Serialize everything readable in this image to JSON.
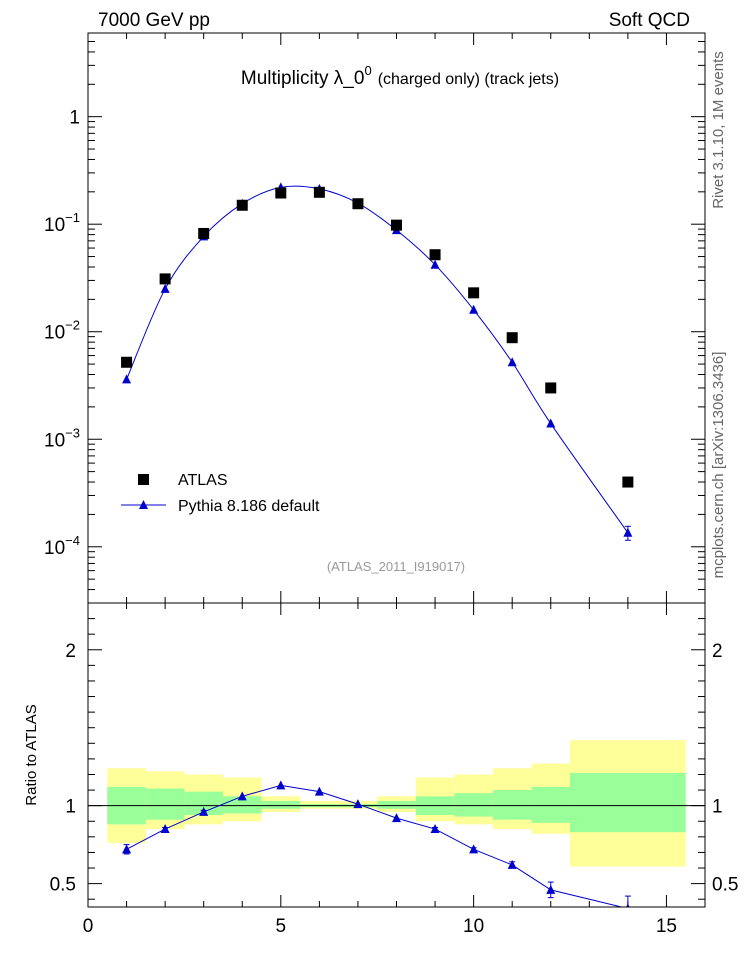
{
  "header": {
    "left": "7000 GeV pp",
    "right": "Soft QCD"
  },
  "side_labels": {
    "rivet": "Rivet 3.1.10,  1M events",
    "mcplots": "mcplots.cern.ch [arXiv:1306.3436]"
  },
  "chart_data": [
    {
      "type": "scatter",
      "title_main": "Multiplicity  λ_0",
      "title_sup": "0",
      "title_suffix": "(charged only) (track jets)",
      "analysis_id": "(ATLAS_2011_I919017)",
      "yscale": "log",
      "ylim": [
        3e-05,
        6
      ],
      "xlim": [
        0,
        16
      ],
      "ytick_labels": [
        {
          "v": 1,
          "base": "1",
          "exp": ""
        },
        {
          "v": 0.1,
          "base": "10",
          "exp": "−1"
        },
        {
          "v": 0.01,
          "base": "10",
          "exp": "−2"
        },
        {
          "v": 0.001,
          "base": "10",
          "exp": "−3"
        },
        {
          "v": 0.0001,
          "base": "10",
          "exp": "−4"
        }
      ],
      "legend": [
        {
          "name": "ATLAS",
          "color": "#000000",
          "marker": "square"
        },
        {
          "name": "Pythia 8.186 default",
          "color": "#0000cc",
          "marker": "triangle"
        }
      ],
      "series": [
        {
          "name": "ATLAS",
          "x": [
            1,
            2,
            3,
            4,
            5,
            6,
            7,
            8,
            9,
            10,
            11,
            12,
            14
          ],
          "y": [
            0.0052,
            0.031,
            0.082,
            0.15,
            0.195,
            0.198,
            0.155,
            0.098,
            0.052,
            0.023,
            0.0088,
            0.003,
            0.0004
          ]
        },
        {
          "name": "Pythia 8.186 default",
          "x": [
            1,
            2,
            3,
            4,
            5,
            6,
            7,
            8,
            9,
            10,
            11,
            12,
            14
          ],
          "y": [
            0.0036,
            0.025,
            0.077,
            0.155,
            0.22,
            0.213,
            0.157,
            0.088,
            0.042,
            0.016,
            0.0052,
            0.0014,
            0.000135
          ],
          "yerr": [
            0,
            0,
            0,
            0,
            0,
            0,
            0,
            0,
            0,
            0,
            0,
            0,
            2e-05
          ]
        }
      ]
    },
    {
      "type": "scatter",
      "ylabel": "Ratio to ATLAS",
      "xlim": [
        0,
        16
      ],
      "ylim": [
        0.35,
        2.3
      ],
      "ytick_labels": [
        "0.5",
        "1",
        "2"
      ],
      "xtick_labels": [
        "0",
        "5",
        "10",
        "15"
      ],
      "bands": {
        "x_edges": [
          0.5,
          1.5,
          2.5,
          3.5,
          4.5,
          5.5,
          6.5,
          7.5,
          8.5,
          9.5,
          10.5,
          11.5,
          12.5,
          15.5
        ],
        "yellow_lo": [
          0.76,
          0.85,
          0.88,
          0.9,
          0.96,
          0.98,
          0.98,
          0.96,
          0.9,
          0.88,
          0.85,
          0.82,
          0.61
        ],
        "yellow_hi": [
          1.24,
          1.22,
          1.2,
          1.18,
          1.06,
          1.03,
          1.03,
          1.06,
          1.18,
          1.2,
          1.24,
          1.27,
          1.42
        ],
        "green_lo": [
          0.88,
          0.91,
          0.94,
          0.95,
          0.98,
          0.99,
          0.99,
          0.98,
          0.94,
          0.93,
          0.91,
          0.89,
          0.83
        ],
        "green_hi": [
          1.12,
          1.11,
          1.09,
          1.06,
          1.03,
          1.01,
          1.01,
          1.03,
          1.06,
          1.08,
          1.1,
          1.12,
          1.21
        ],
        "yellow_color": "#ffff99",
        "green_color": "#99ff99"
      },
      "series": [
        {
          "name": "Pythia 8.186 default",
          "x": [
            1,
            2,
            3,
            4,
            5,
            6,
            7,
            8,
            9,
            10,
            11,
            12,
            14
          ],
          "y": [
            0.72,
            0.85,
            0.96,
            1.06,
            1.13,
            1.09,
            1.01,
            0.92,
            0.85,
            0.72,
            0.62,
            0.46,
            0.34
          ],
          "yerr": [
            0.03,
            0.01,
            0.01,
            0.005,
            0.005,
            0.005,
            0.005,
            0.005,
            0.01,
            0.01,
            0.02,
            0.05,
            0.08
          ]
        }
      ]
    }
  ]
}
